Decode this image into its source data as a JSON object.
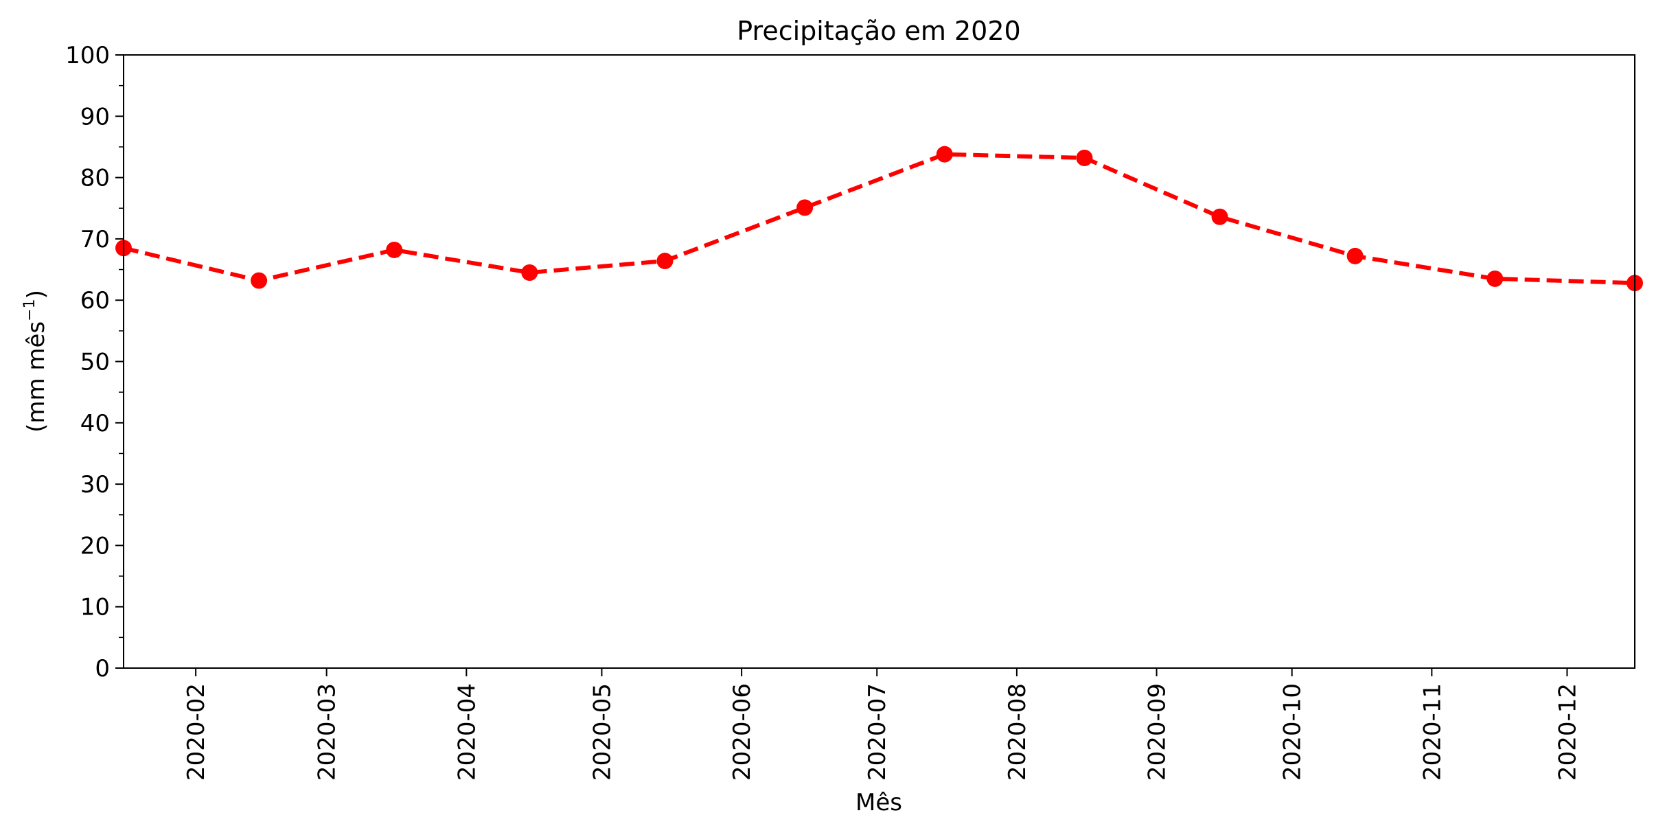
{
  "chart_data": {
    "type": "line",
    "title": "Precipitação em 2020",
    "xlabel": "Mês",
    "ylabel": {
      "prefix": "(mm mês",
      "sup": "−1",
      "suffix": ")"
    },
    "x_tick_labels": [
      "2020-02",
      "2020-03",
      "2020-04",
      "2020-05",
      "2020-06",
      "2020-07",
      "2020-08",
      "2020-09",
      "2020-10",
      "2020-11",
      "2020-12"
    ],
    "x_ticks": [
      "2020-02-01",
      "2020-03-01",
      "2020-04-01",
      "2020-05-01",
      "2020-06-01",
      "2020-07-01",
      "2020-08-01",
      "2020-09-01",
      "2020-10-01",
      "2020-11-01",
      "2020-12-01"
    ],
    "xlim": [
      "2020-01-16",
      "2020-12-16"
    ],
    "ylim": [
      0,
      100
    ],
    "y_ticks": [
      0,
      10,
      20,
      30,
      40,
      50,
      60,
      70,
      80,
      90,
      100
    ],
    "grid": false,
    "series": [
      {
        "color": "#ff0000",
        "line_style": "dashed",
        "marker": "circle",
        "points": [
          {
            "x": "2020-01-16",
            "y": 68.5
          },
          {
            "x": "2020-02-15",
            "y": 63.2
          },
          {
            "x": "2020-03-16",
            "y": 68.2
          },
          {
            "x": "2020-04-15",
            "y": 64.5
          },
          {
            "x": "2020-05-15",
            "y": 66.4
          },
          {
            "x": "2020-06-15",
            "y": 75.1
          },
          {
            "x": "2020-07-16",
            "y": 83.8
          },
          {
            "x": "2020-08-16",
            "y": 83.2
          },
          {
            "x": "2020-09-15",
            "y": 73.6
          },
          {
            "x": "2020-10-15",
            "y": 67.2
          },
          {
            "x": "2020-11-15",
            "y": 63.5
          },
          {
            "x": "2020-12-16",
            "y": 62.8
          }
        ]
      }
    ]
  }
}
